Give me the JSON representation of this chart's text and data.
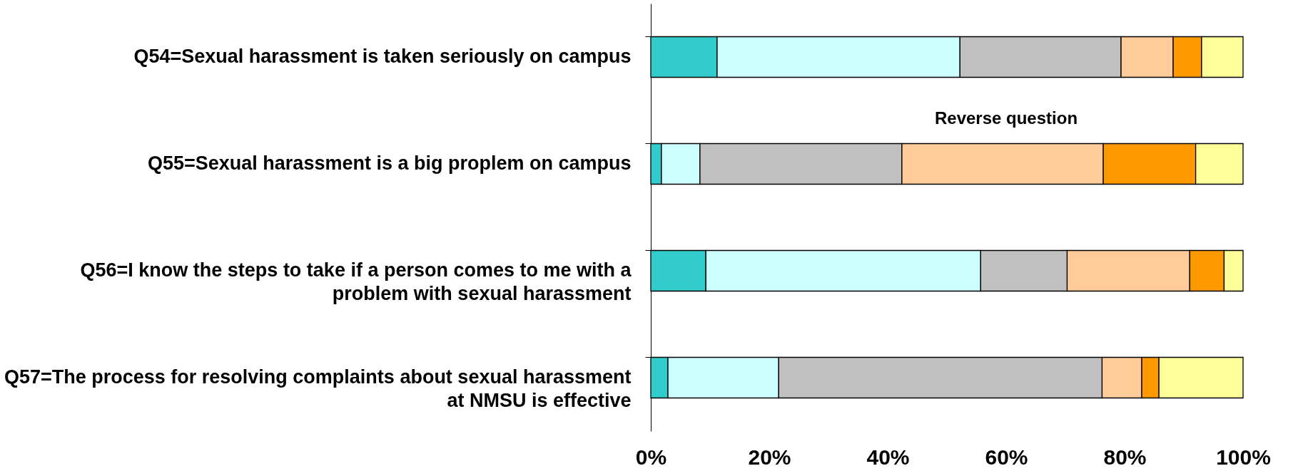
{
  "chart_data": {
    "type": "bar",
    "orientation": "horizontal",
    "stacked": true,
    "categories": [
      "Q54=Sexual harassment is taken seriously on campus",
      "Q55=Sexual harassment is a big proplem on campus",
      "Q56=I know the steps to take if a person comes to me with a problem with sexual harassment",
      "Q57=The process for resolving complaints about sexual harassment at NMSU is effective"
    ],
    "series": [
      {
        "color": "#33cccc",
        "values": [
          11.2,
          1.8,
          9.3,
          2.9
        ]
      },
      {
        "color": "#ccffff",
        "values": [
          41.0,
          6.5,
          46.4,
          18.7
        ]
      },
      {
        "color": "#c0c0c0",
        "values": [
          27.2,
          34.1,
          14.6,
          54.6
        ]
      },
      {
        "color": "#ffcc99",
        "values": [
          8.8,
          34.0,
          20.7,
          6.7
        ]
      },
      {
        "color": "#ff9900",
        "values": [
          4.8,
          15.6,
          5.8,
          2.9
        ]
      },
      {
        "color": "#ffff99",
        "values": [
          7.0,
          8.0,
          3.2,
          14.2
        ]
      }
    ],
    "xlim": [
      0,
      100
    ],
    "xticks": [
      {
        "value": 0,
        "label": "0%"
      },
      {
        "value": 20,
        "label": "20%"
      },
      {
        "value": 40,
        "label": "40%"
      },
      {
        "value": 60,
        "label": "60%"
      },
      {
        "value": 80,
        "label": "80%"
      },
      {
        "value": 100,
        "label": "100%"
      }
    ],
    "annotations": [
      "Reverse question"
    ],
    "grid": false,
    "legend": false
  }
}
